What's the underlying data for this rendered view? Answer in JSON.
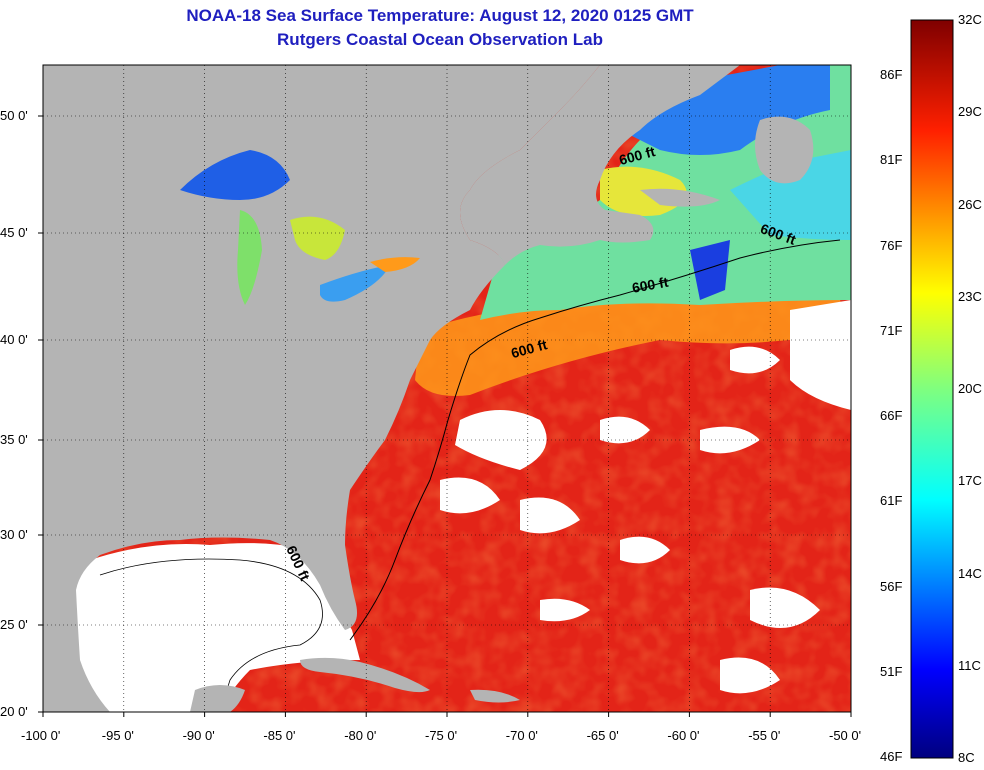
{
  "title": "NOAA-18 Sea Surface Temperature:  August 12, 2020 0125 GMT",
  "subtitle": "Rutgers Coastal Ocean Observation Lab",
  "map": {
    "lon_range": [
      -100,
      -50
    ],
    "lat_range": [
      20,
      52
    ],
    "lat_ticks": [
      {
        "value": 50,
        "label": "50 0'"
      },
      {
        "value": 45,
        "label": "45 0'"
      },
      {
        "value": 40,
        "label": "40 0'"
      },
      {
        "value": 35,
        "label": "35 0'"
      },
      {
        "value": 30,
        "label": "30 0'"
      },
      {
        "value": 25,
        "label": "25 0'"
      },
      {
        "value": 20,
        "label": "20 0'"
      }
    ],
    "lon_ticks": [
      {
        "value": -100,
        "label": "-100 0'"
      },
      {
        "value": -95,
        "label": "-95 0'"
      },
      {
        "value": -90,
        "label": "-90 0'"
      },
      {
        "value": -85,
        "label": "-85 0'"
      },
      {
        "value": -80,
        "label": "-80 0'"
      },
      {
        "value": -75,
        "label": "-75 0'"
      },
      {
        "value": -70,
        "label": "-70 0'"
      },
      {
        "value": -65,
        "label": "-65 0'"
      },
      {
        "value": -60,
        "label": "-60 0'"
      },
      {
        "value": -55,
        "label": "-55 0'"
      },
      {
        "value": -50,
        "label": "-50 0'"
      }
    ],
    "contour_labels": [
      "600 ft",
      "600 ft",
      "600 ft",
      "600 ft",
      "600 ft"
    ],
    "colors": {
      "land": "#b4b4b4",
      "cloud": "#ffffff",
      "warm": "#e8261a",
      "gulf": "#ffffff"
    }
  },
  "colorbar": {
    "celsius": [
      "32C",
      "29C",
      "26C",
      "23C",
      "20C",
      "17C",
      "14C",
      "11C",
      "8C"
    ],
    "fahrenheit": [
      "86F",
      "81F",
      "76F",
      "71F",
      "66F",
      "61F",
      "56F",
      "51F",
      "46F"
    ]
  }
}
